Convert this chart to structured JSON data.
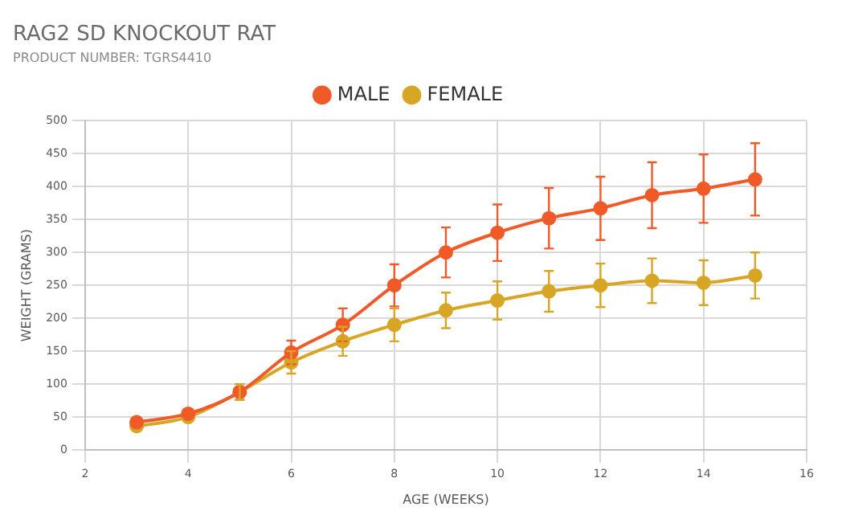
{
  "chart_data": {
    "type": "line",
    "title": "RAG2 SD KNOCKOUT RAT",
    "subtitle": "PRODUCT NUMBER: TGRS4410",
    "xlabel": "AGE (WEEKS)",
    "ylabel": "WEIGHT (GRAMS)",
    "x": [
      3,
      4,
      5,
      6,
      7,
      8,
      9,
      10,
      11,
      12,
      13,
      14,
      15
    ],
    "series": [
      {
        "name": "MALE",
        "color": "#f05a28",
        "values": [
          42,
          55,
          88,
          148,
          190,
          250,
          300,
          330,
          352,
          367,
          387,
          397,
          411
        ],
        "errors": [
          null,
          null,
          12,
          18,
          25,
          32,
          38,
          43,
          46,
          48,
          50,
          52,
          55
        ]
      },
      {
        "name": "FEMALE",
        "color": "#d6a624",
        "values": [
          36,
          50,
          88,
          133,
          165,
          190,
          212,
          227,
          241,
          250,
          257,
          254,
          265
        ],
        "errors": [
          null,
          null,
          12,
          17,
          22,
          25,
          27,
          29,
          31,
          33,
          34,
          34,
          35
        ]
      }
    ],
    "xlim": [
      2,
      16
    ],
    "xticks": [
      2,
      4,
      6,
      8,
      10,
      12,
      14,
      16
    ],
    "ylim": [
      0,
      500
    ],
    "yticks": [
      0,
      50,
      100,
      150,
      200,
      250,
      300,
      350,
      400,
      450,
      500
    ],
    "grid": true,
    "legend": "top",
    "marker": "circle",
    "line_style": "solid"
  }
}
